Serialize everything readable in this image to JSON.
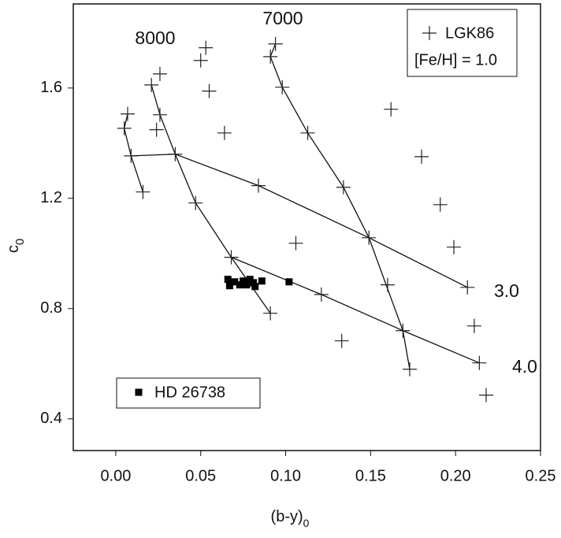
{
  "chart_data": {
    "type": "scatter",
    "x_label": "(b-y)",
    "x_label_subscript": "0",
    "y_label": "c",
    "y_label_subscript": "0",
    "xlim": [
      -0.025,
      0.25
    ],
    "ylim": [
      0.285,
      1.905
    ],
    "xticks": [
      {
        "value": 0,
        "label": "0.00"
      },
      0.05,
      {
        "value": 0.1,
        "label": "0.10"
      },
      0.15,
      {
        "value": 0.2,
        "label": "0.20"
      },
      0.25
    ],
    "yticks": [
      0.4,
      0.8,
      1.2,
      1.6
    ],
    "legend_note": "[Fe/H] = 1.0",
    "series": [
      {
        "name": "LGK86",
        "marker": "plus",
        "color": "#222222",
        "x": [
          0.005,
          0.007,
          0.009,
          0.016,
          0.021,
          0.026,
          0.024,
          0.026,
          0.035,
          0.047,
          0.05,
          0.053,
          0.055,
          0.064,
          0.068,
          0.091,
          0.091,
          0.094,
          0.098,
          0.084,
          0.106,
          0.113,
          0.134,
          0.133,
          0.121,
          0.149,
          0.16,
          0.162,
          0.18,
          0.191,
          0.199,
          0.169,
          0.173,
          0.207,
          0.211,
          0.214,
          0.218
        ],
        "values": [
          1.454,
          1.506,
          1.354,
          1.223,
          1.611,
          1.651,
          1.449,
          1.503,
          1.36,
          1.183,
          1.7,
          1.746,
          1.589,
          1.437,
          0.986,
          0.783,
          1.714,
          1.76,
          1.603,
          1.246,
          1.037,
          1.437,
          1.24,
          0.683,
          0.851,
          1.057,
          0.886,
          1.523,
          1.351,
          1.177,
          1.023,
          0.72,
          0.58,
          0.877,
          0.737,
          0.603,
          0.486
        ]
      },
      {
        "name": "HD 26738",
        "marker": "square",
        "color": "#000000",
        "x": [
          0.066,
          0.067,
          0.07,
          0.073,
          0.075,
          0.077,
          0.079,
          0.081,
          0.082,
          0.086,
          0.102
        ],
        "values": [
          0.906,
          0.883,
          0.897,
          0.886,
          0.9,
          0.886,
          0.906,
          0.894,
          0.88,
          0.9,
          0.897
        ]
      }
    ],
    "curves": [
      {
        "label": "8000",
        "x": [
          0.021,
          0.026,
          0.035,
          0.047,
          0.068,
          0.091
        ],
        "y": [
          1.611,
          1.503,
          1.36,
          1.183,
          0.986,
          0.783
        ]
      },
      {
        "label": "7000",
        "x": [
          0.094,
          0.091,
          0.098,
          0.113,
          0.134,
          0.149,
          0.169,
          0.173
        ],
        "y": [
          1.76,
          1.714,
          1.603,
          1.437,
          1.24,
          1.057,
          0.72,
          0.58
        ]
      },
      {
        "label": "3.0",
        "x": [
          0.009,
          0.035,
          0.084,
          0.149,
          0.207
        ],
        "y": [
          1.354,
          1.36,
          1.246,
          1.057,
          0.877
        ]
      },
      {
        "label": "4.0",
        "x": [
          0.068,
          0.121,
          0.169,
          0.214
        ],
        "y": [
          0.986,
          0.851,
          0.72,
          0.603
        ]
      },
      {
        "x": [
          0.007,
          0.005,
          0.009,
          0.016
        ],
        "y": [
          1.506,
          1.454,
          1.354,
          1.223
        ]
      }
    ]
  }
}
